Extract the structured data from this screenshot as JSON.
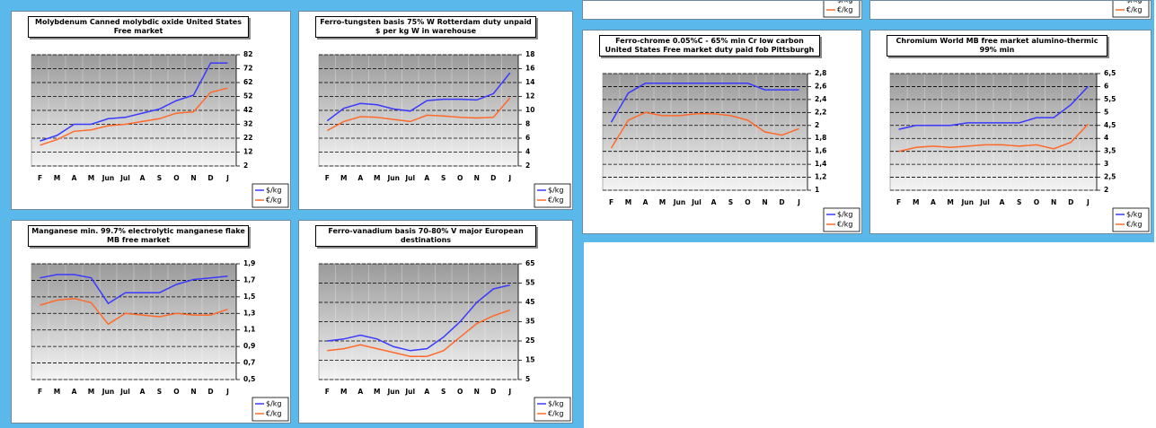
{
  "chart_data": [
    {
      "type": "line",
      "title": "Molybdenum Canned molybdic oxide United States Free market",
      "categories": [
        "F",
        "M",
        "A",
        "M",
        "Jun",
        "Jul",
        "A",
        "S",
        "O",
        "N",
        "D",
        "J"
      ],
      "series": [
        {
          "name": "$/kg",
          "color": "#3a3aff",
          "values": [
            20,
            24,
            32,
            32,
            36,
            37,
            40,
            43,
            49,
            53,
            76,
            76
          ]
        },
        {
          "name": "€/kg",
          "color": "#ff6a2a",
          "values": [
            17,
            21,
            27,
            28,
            31,
            32,
            34,
            36,
            40,
            41,
            55,
            58
          ]
        }
      ],
      "ylim": [
        2,
        82
      ],
      "yticks": [
        2,
        12,
        22,
        32,
        42,
        52,
        62,
        72,
        82
      ],
      "grid": true
    },
    {
      "type": "line",
      "title": "Ferro-tungsten basis 75% W Rotterdam duty unpaid $ per kg W in warehouse",
      "categories": [
        "F",
        "M",
        "A",
        "M",
        "Jun",
        "Jul",
        "A",
        "S",
        "O",
        "N",
        "D",
        "J"
      ],
      "series": [
        {
          "name": "$/kg",
          "color": "#3a3aff",
          "values": [
            8.5,
            10.3,
            11,
            10.8,
            10.2,
            9.9,
            11.4,
            11.6,
            11.6,
            11.5,
            12.4,
            15.4
          ]
        },
        {
          "name": "€/kg",
          "color": "#ff6a2a",
          "values": [
            7.1,
            8.4,
            9.1,
            9,
            8.7,
            8.4,
            9.3,
            9.2,
            9,
            8.9,
            9,
            11.8
          ]
        }
      ],
      "ylim": [
        2,
        18
      ],
      "yticks": [
        2,
        4,
        6,
        8,
        10,
        12,
        14,
        16,
        18
      ],
      "grid": true
    },
    {
      "type": "line",
      "title": "Manganese min. 99.7% electrolytic manganese flake MB free market",
      "categories": [
        "F",
        "M",
        "A",
        "M",
        "Jun",
        "Jul",
        "A",
        "S",
        "O",
        "N",
        "D",
        "J"
      ],
      "series": [
        {
          "name": "$/kg",
          "color": "#3a3aff",
          "values": [
            1.73,
            1.77,
            1.77,
            1.73,
            1.42,
            1.55,
            1.55,
            1.55,
            1.65,
            1.71,
            1.73,
            1.75
          ]
        },
        {
          "name": "€/kg",
          "color": "#ff6a2a",
          "values": [
            1.4,
            1.46,
            1.48,
            1.43,
            1.17,
            1.3,
            1.28,
            1.26,
            1.3,
            1.28,
            1.28,
            1.35
          ]
        }
      ],
      "ylim": [
        0.5,
        1.9
      ],
      "yticks": [
        {
          "value": 0.5,
          "label": "0,5"
        },
        {
          "value": 0.7,
          "label": "0,7"
        },
        {
          "value": 0.9,
          "label": "0,9"
        },
        {
          "value": 1.1,
          "label": "1,1"
        },
        {
          "value": 1.3,
          "label": "1,3"
        },
        {
          "value": 1.5,
          "label": "1,5"
        },
        {
          "value": 1.7,
          "label": "1,7"
        },
        {
          "value": 1.9,
          "label": "1,9"
        }
      ],
      "grid": true
    },
    {
      "type": "line",
      "title": "Ferro-vanadium basis 70-80% V major European destinations",
      "categories": [
        "F",
        "M",
        "A",
        "M",
        "Jun",
        "Jul",
        "A",
        "S",
        "O",
        "N",
        "D",
        "J"
      ],
      "series": [
        {
          "name": "$/kg",
          "color": "#3a3aff",
          "values": [
            25,
            26,
            28,
            26,
            22,
            20,
            21,
            27,
            35,
            45,
            52,
            54
          ]
        },
        {
          "name": "€/kg",
          "color": "#ff6a2a",
          "values": [
            20,
            21,
            23,
            21,
            19,
            17,
            17,
            20,
            27,
            34,
            38,
            41
          ]
        }
      ],
      "ylim": [
        5,
        65
      ],
      "yticks": [
        5,
        15,
        25,
        35,
        45,
        55,
        65
      ],
      "grid": true
    },
    {
      "type": "line",
      "title": "Ferro-chrome 0.05%C - 65% min Cr low carbon United States Free market duty paid fob Pittsburgh",
      "categories": [
        "F",
        "M",
        "A",
        "M",
        "Jun",
        "Jul",
        "A",
        "S",
        "O",
        "N",
        "D",
        "J"
      ],
      "series": [
        {
          "name": "$/kg",
          "color": "#3a3aff",
          "values": [
            2.05,
            2.5,
            2.65,
            2.65,
            2.65,
            2.65,
            2.65,
            2.65,
            2.65,
            2.55,
            2.55,
            2.55
          ]
        },
        {
          "name": "€/kg",
          "color": "#ff6a2a",
          "values": [
            1.65,
            2.08,
            2.2,
            2.15,
            2.15,
            2.18,
            2.18,
            2.15,
            2.08,
            1.9,
            1.85,
            1.95
          ]
        }
      ],
      "ylim": [
        1,
        2.8
      ],
      "yticks": [
        1,
        {
          "value": 1.2,
          "label": "1,2"
        },
        {
          "value": 1.4,
          "label": "1,4"
        },
        {
          "value": 1.6,
          "label": "1,6"
        },
        {
          "value": 1.8,
          "label": "1,8"
        },
        2,
        {
          "value": 2.2,
          "label": "2,2"
        },
        {
          "value": 2.4,
          "label": "2,4"
        },
        {
          "value": 2.6,
          "label": "2,6"
        },
        {
          "value": 2.8,
          "label": "2,8"
        }
      ],
      "grid": true
    },
    {
      "type": "line",
      "title": "Chromium World MB free market alumino-thermic 99% min",
      "categories": [
        "F",
        "M",
        "A",
        "M",
        "Jun",
        "Jul",
        "A",
        "S",
        "O",
        "N",
        "D",
        "J"
      ],
      "series": [
        {
          "name": "$/kg",
          "color": "#3a3aff",
          "values": [
            4.35,
            4.5,
            4.5,
            4.5,
            4.6,
            4.6,
            4.6,
            4.6,
            4.8,
            4.8,
            5.3,
            6.0
          ]
        },
        {
          "name": "€/kg",
          "color": "#ff6a2a",
          "values": [
            3.5,
            3.65,
            3.7,
            3.65,
            3.7,
            3.75,
            3.75,
            3.7,
            3.75,
            3.6,
            3.85,
            4.55
          ]
        }
      ],
      "ylim": [
        2,
        6.5
      ],
      "yticks": [
        2,
        {
          "value": 2.5,
          "label": "2,5"
        },
        3,
        {
          "value": 3.5,
          "label": "3,5"
        },
        4,
        {
          "value": 4.5,
          "label": "4,5"
        },
        5,
        {
          "value": 5.5,
          "label": "5,5"
        },
        6,
        {
          "value": 6.5,
          "label": "6,5"
        }
      ],
      "grid": true
    },
    {
      "type": "legend",
      "series": [
        {
          "name": "$/kg",
          "color": "#3a3aff"
        },
        {
          "name": "€/kg",
          "color": "#ff6a2a"
        }
      ]
    },
    {
      "type": "legend",
      "series": [
        {
          "name": "$/kg",
          "color": "#3a3aff"
        },
        {
          "name": "€/kg",
          "color": "#ff6a2a"
        }
      ]
    }
  ]
}
